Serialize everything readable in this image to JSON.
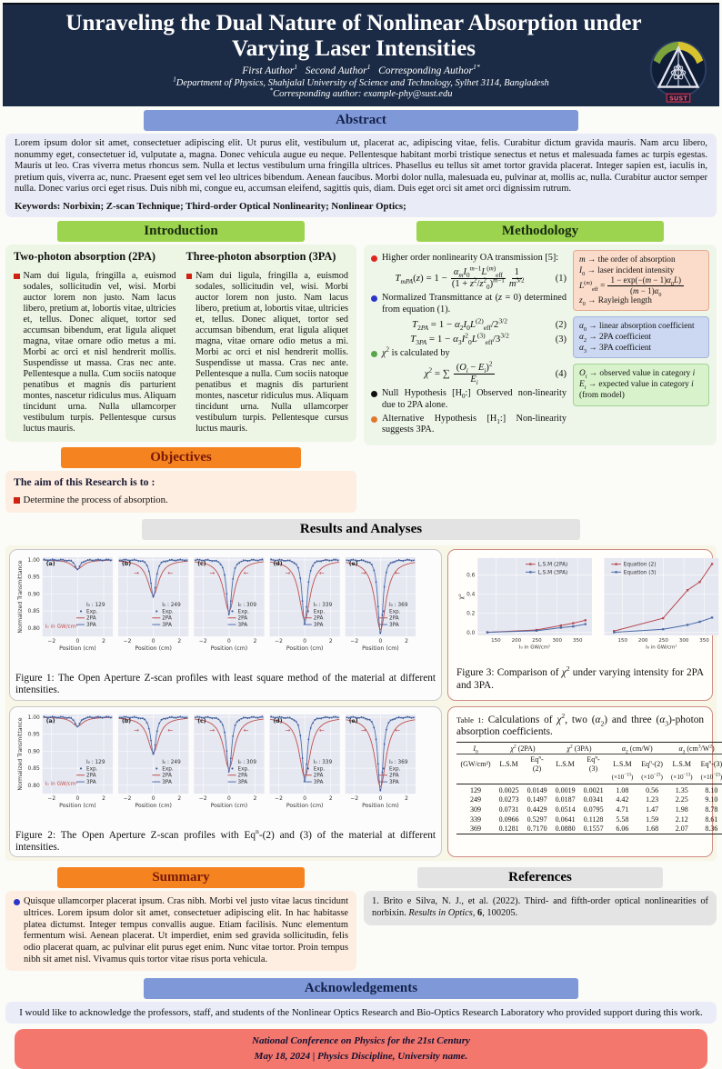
{
  "poster": {
    "header": {
      "title": "Unraveling the Dual Nature of Nonlinear Absorption under Varying Laser Intensities",
      "authors_html": "First Author<sup>1</sup>&nbsp;&nbsp; Second Author<sup>1</sup>&nbsp;&nbsp; Corresponding Author<sup>1*</sup>",
      "affiliation_html": "<sup>1</sup>Department of Physics, Shahjalal University of Science and Technology, Sylhet 3114, Bangladesh",
      "corresponding_html": "<sup>*</sup>Corresponding author: example-phy@sust.edu",
      "logo_text": "SUST"
    },
    "abstract": {
      "label": "Abstract",
      "text": "Lorem ipsum dolor sit amet, consectetuer adipiscing elit. Ut purus elit, vestibulum ut, placerat ac, adipiscing vitae, felis. Curabitur dictum gravida mauris. Nam arcu libero, nonummy eget, consectetuer id, vulputate a, magna. Donec vehicula augue eu neque. Pellentesque habitant morbi tristique senectus et netus et malesuada fames ac turpis egestas. Mauris ut leo. Cras viverra metus rhoncus sem. Nulla et lectus vestibulum urna fringilla ultrices. Phasellus eu tellus sit amet tortor gravida placerat. Integer sapien est, iaculis in, pretium quis, viverra ac, nunc. Praesent eget sem vel leo ultrices bibendum. Aenean faucibus. Morbi dolor nulla, malesuada eu, pulvinar at, mollis ac, nulla. Curabitur auctor semper nulla. Donec varius orci eget risus. Duis nibh mi, congue eu, accumsan eleifend, sagittis quis, diam. Duis eget orci sit amet orci dignissim rutrum.",
      "keywords": "Keywords: Norbixin; Z-scan Technique; Third-order Optical Nonlinearity; Nonlinear Optics;"
    },
    "introduction": {
      "label": "Introduction",
      "columns": [
        {
          "heading": "Two-photon absorption (2PA)",
          "text": "Nam dui ligula, fringilla a, euismod sodales, sollicitudin vel, wisi. Morbi auctor lorem non justo. Nam lacus libero, pretium at, lobortis vitae, ultricies et, tellus. Donec aliquet, tortor sed accumsan bibendum, erat ligula aliquet magna, vitae ornare odio metus a mi. Morbi ac orci et nisl hendrerit mollis. Suspendisse ut massa. Cras nec ante. Pellentesque a nulla. Cum sociis natoque penatibus et magnis dis parturient montes, nascetur ridiculus mus. Aliquam tincidunt urna. Nulla ullamcorper vestibulum turpis. Pellentesque cursus luctus mauris."
        },
        {
          "heading": "Three-photon absorption (3PA)",
          "text": "Nam dui ligula, fringilla a, euismod sodales, sollicitudin vel, wisi. Morbi auctor lorem non justo. Nam lacus libero, pretium at, lobortis vitae, ultricies et, tellus. Donec aliquet, tortor sed accumsan bibendum, erat ligula aliquet magna, vitae ornare odio metus a mi. Morbi ac orci et nisl hendrerit mollis. Suspendisse ut massa. Cras nec ante. Pellentesque a nulla. Cum sociis natoque penatibus et magnis dis parturient montes, nascetur ridiculus mus. Aliquam tincidunt urna. Nulla ullamcorper vestibulum turpis. Pellentesque cursus luctus mauris."
        }
      ]
    },
    "objectives": {
      "label": "Objectives",
      "heading": "The aim of this Research is to :",
      "item": "Determine the process of absorption."
    },
    "methodology": {
      "label": "Methodology",
      "bullets": [
        {
          "color": "#e02621",
          "html": "Higher order nonlinearity OA transmission [5]:"
        },
        {
          "color": "#2b35c9",
          "html": "Normalized Transmittance at (<i>z</i> = 0) determined from equation (1)."
        },
        {
          "color": "#57a64a",
          "html": "<i>χ</i><sup>2</sup> is calculated by"
        },
        {
          "color": "#111111",
          "html": "Null Hypothesis [H<sub>0</sub>:] Observed non-linearity due to 2PA alone."
        },
        {
          "color": "#e2782e",
          "html": "Alternative Hypothesis [H<sub>1</sub>:] Non-linearity suggests 3PA."
        }
      ],
      "eq1": {
        "lhs": "<i>T<sub>mPA</sub></i>(<i>z</i>) = 1 −",
        "num": "<i>α<sub>m</sub></i><i>I</i><sub>0</sub><sup><i>m</i>−1</sup><i>L</i><sup>(<i>m</i>)</sup><sub>eff</sub>",
        "den": "(1 + <i>z</i><sup>2</sup>/<i>z</i><sup>2</sup><sub>0</sub>)<sup><i>m</i>−1</sup>",
        "num2": "1",
        "den2": "<i>m</i><sup>3/2</sup>",
        "no": "(1)"
      },
      "eq2": {
        "body": "<i>T</i><sub>2<i>PA</i></sub> = 1 − <i>α</i><sub>2</sub><i>I</i><sub>0</sub><i>L</i><sup>(2)</sup><sub>eff</sub>/2<sup>3/2</sup>",
        "no": "(2)"
      },
      "eq3": {
        "body": "<i>T</i><sub>3<i>PA</i></sub> = 1 − <i>α</i><sub>3</sub><i>I</i><sup>2</sup><sub>0</sub><i>L</i><sup>(3)</sup><sub>eff</sub>/3<sup>3/2</sup>",
        "no": "(3)"
      },
      "eq4": {
        "lhs": "<i>χ</i><sup>2</sup> = ∑",
        "num": "(<i>O<sub>i</sub></i> − <i>E<sub>i</sub></i>)<sup>2</sup>",
        "den": "<i>E<sub>i</sub></i>",
        "no": "(4)"
      },
      "box1": {
        "line1": "<i>m</i> → the order of absorption",
        "line2": "<i>I</i><sub>0</sub> → laser incident intensity",
        "leff_lhs": "<i>L</i><sup>(<i>m</i>)</sup><sub>eff</sub> =",
        "leff_num": "1 − exp(−(<i>m</i> − 1)<i>α</i><sub>0</sub><i>L</i>)",
        "leff_den": "(<i>m</i> − 1)<i>α</i><sub>0</sub>",
        "line4": "<i>z</i><sub>0</sub> → Rayleigh length"
      },
      "box2": {
        "lines": [
          "<i>α</i><sub>0</sub> → linear absorption coefficient",
          "<i>α</i><sub>2</sub> → 2PA coefficient",
          "<i>α</i><sub>3</sub> → 3PA coefficient"
        ]
      },
      "box3": {
        "lines": [
          "<i>O<sub>i</sub></i> → observed value in category <i>i</i>",
          "<i>E<sub>i</sub></i> → expected value in category <i>i</i> (from model)"
        ]
      }
    },
    "results": {
      "label": "Results and Analyses",
      "fig1_caption_html": "Figure 1: The Open Aperture Z-scan profiles with least square method of the material at different intensities.",
      "fig2_caption_html": "Figure 2: The Open Aperture Z-scan profiles with Eq<sup>n</sup>-(2) and (3) of the material at different intensities.",
      "fig3_caption_html": "Figure 3: Comparison of <i>χ</i><sup>2</sup> under varying intensity for 2PA and 3PA.",
      "table_caption_html": "<span class='tcap'>Table 1:</span> Calculations of <i>χ</i><sup>2</sup>, two (<i>α</i><sub>2</sub>) and three (<i>α</i><sub>3</sub>)-photon absorption coefficients."
    },
    "summary": {
      "label": "Summary",
      "text": "Quisque ullamcorper placerat ipsum. Cras nibh. Morbi vel justo vitae lacus tincidunt ultrices. Lorem ipsum dolor sit amet, consectetuer adipiscing elit. In hac habitasse platea dictumst. Integer tempus convallis augue. Etiam facilisis. Nunc elementum fermentum wisi. Aenean placerat. Ut imperdiet, enim sed gravida sollicitudin, felis odio placerat quam, ac pulvinar elit purus eget enim. Nunc vitae tortor. Proin tempus nibh sit amet nisl. Vivamus quis tortor vitae risus porta vehicula."
    },
    "references": {
      "label": "References",
      "item_html": "1.&nbsp;Brito e Silva, N. J., et al. (2022). Third- and fifth-order optical nonlinearities of norbixin. <i>Results in Optics</i>, <b>6</b>, 100205."
    },
    "acknowledgements": {
      "label": "Acknowledgements",
      "text": "I would like to acknowledge the professors, staff, and students of the Nonlinear Optics Research and Bio-Optics Research Laboratory who provided support during this work."
    },
    "footer": {
      "line1": "National Conference on Physics for the 21st Century",
      "line2": "May 18, 2024  | Physics Discipline, University name."
    }
  },
  "chart_data": [
    {
      "id": "zscan",
      "type": "line",
      "title": "Open Aperture Z-scan profiles (Figures 1 and 2)",
      "ylabel": "Normalized Transmittance",
      "xlabel": "Position (cm)",
      "xlim": [
        -2.7,
        2.7
      ],
      "ylim": [
        0.775,
        1.008
      ],
      "xticks": [
        -2,
        0,
        2
      ],
      "yticks": [
        1.0,
        0.95,
        0.9,
        0.85,
        0.8
      ],
      "note": "I₀ in GW/cm²",
      "legend": [
        "Exp.",
        "2PA",
        "3PA"
      ],
      "colors": {
        "exp": "#3d5a96",
        "pa2": "#c0504d",
        "pa3": "#4f6fad"
      },
      "panels": [
        {
          "label": "(a)",
          "I0": 129,
          "min_T": 0.972,
          "arrows": false
        },
        {
          "label": "(b)",
          "I0": 249,
          "min_T": 0.89,
          "arrows": true
        },
        {
          "label": "(c)",
          "I0": 309,
          "min_T": 0.84,
          "arrows": true
        },
        {
          "label": "(d)",
          "I0": 339,
          "min_T": 0.812,
          "arrows": true
        },
        {
          "label": "(e)",
          "I0": 369,
          "min_T": 0.782,
          "arrows": true
        }
      ]
    },
    {
      "id": "chi2",
      "type": "line",
      "title": "Comparison of χ² under varying intensity (Figure 3)",
      "ylabel": "χ²",
      "xlabel": "I₀ in GW/cm²",
      "x": [
        129,
        249,
        309,
        339,
        369
      ],
      "xlim": [
        105,
        385
      ],
      "ylim": [
        -0.03,
        0.78
      ],
      "xticks": [
        150,
        200,
        250,
        300,
        350
      ],
      "yticks": [
        0.0,
        0.2,
        0.4,
        0.6
      ],
      "panels": [
        {
          "series": [
            {
              "name": "L.S.M (2PA)",
              "color": "#b5494f",
              "y": [
                0.0025,
                0.0273,
                0.0731,
                0.0966,
                0.1281
              ]
            },
            {
              "name": "L.S.M (3PA)",
              "color": "#4a6aa5",
              "y": [
                0.0019,
                0.0187,
                0.0514,
                0.0641,
                0.088
              ]
            }
          ]
        },
        {
          "series": [
            {
              "name": "Equation (2)",
              "color": "#b5494f",
              "y": [
                0.0149,
                0.1497,
                0.4429,
                0.5297,
                0.717
              ]
            },
            {
              "name": "Equation (3)",
              "color": "#4a6aa5",
              "y": [
                0.0021,
                0.0341,
                0.0795,
                0.1128,
                0.1557
              ]
            }
          ]
        }
      ]
    },
    {
      "id": "table1",
      "type": "table",
      "groups": [
        {
          "html": "<i>I</i><sub>0</sub>",
          "span": 1
        },
        {
          "html": "<i>χ</i><sup>2</sup> (2PA)",
          "span": 2
        },
        {
          "html": "<i>χ</i><sup>2</sup> (3PA)",
          "span": 2
        },
        {
          "html": "<i>α</i><sub>2</sub> (cm/W)",
          "span": 2
        },
        {
          "html": "<i>α</i><sub>3</sub> (cm<sup>3</sup>/W<sup>2</sup>)",
          "span": 2
        }
      ],
      "sub": [
        "(GW/cm²)",
        "L.S.M",
        "Eq<sup>n</sup>-(2)",
        "L.S.M",
        "Eq<sup>n</sup>-(3)",
        "L.S.M",
        "Eq<sup>n</sup>-(2)",
        "L.S.M",
        "Eq<sup>n</sup>-(3)"
      ],
      "exps": [
        "",
        "",
        "",
        "",
        "",
        "(×10<sup>−13</sup>)",
        "(×10<sup>−23</sup>)",
        "(×10<sup>−13</sup>)",
        "(×10<sup>−23</sup>)"
      ],
      "rows": [
        [
          "129",
          "0.0025",
          "0.0149",
          "0.0019",
          "0.0021",
          "1.08",
          "0.56",
          "1.35",
          "8.10"
        ],
        [
          "249",
          "0.0273",
          "0.1497",
          "0.0187",
          "0.0341",
          "4.42",
          "1.23",
          "2.25",
          "9.10"
        ],
        [
          "309",
          "0.0731",
          "0.4429",
          "0.0514",
          "0.0795",
          "4.71",
          "1.47",
          "1.98",
          "8.78"
        ],
        [
          "339",
          "0.0966",
          "0.5297",
          "0.0641",
          "0.1128",
          "5.58",
          "1.59",
          "2.12",
          "8.61"
        ],
        [
          "369",
          "0.1281",
          "0.7170",
          "0.0880",
          "0.1557",
          "6.06",
          "1.68",
          "2.07",
          "8.36"
        ]
      ]
    }
  ]
}
